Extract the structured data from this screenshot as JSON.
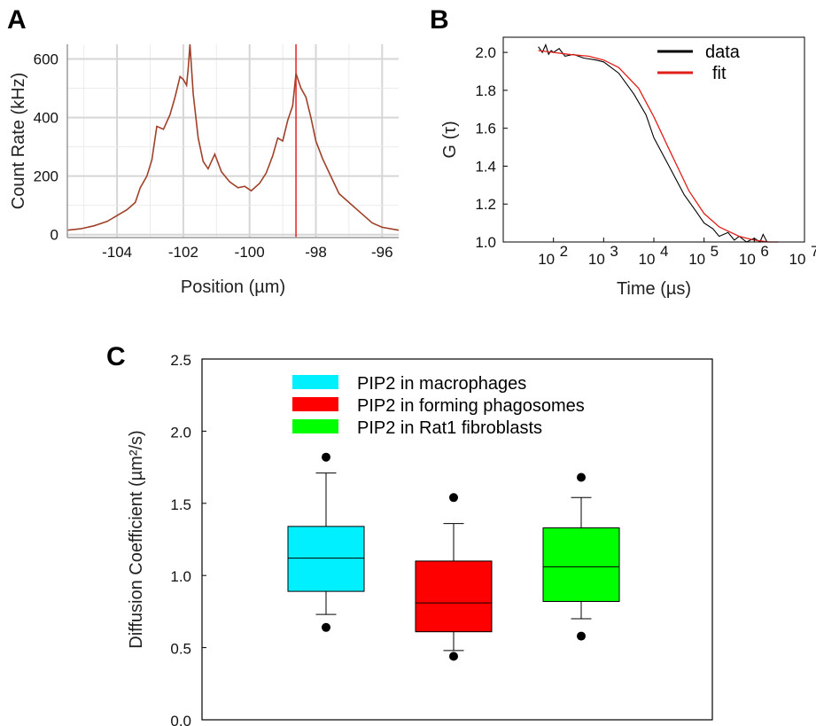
{
  "chart_data": [
    {
      "panel": "A",
      "type": "line",
      "xlabel": "Position (µm)",
      "ylabel": "Count Rate (kHz)",
      "xlim": [
        -105.5,
        -95.5
      ],
      "ylim": [
        -10,
        650
      ],
      "xticks": [
        "-104",
        "-102",
        "-100",
        "-98",
        "-96"
      ],
      "yticks": [
        "0",
        "200",
        "400",
        "600"
      ],
      "grid": true,
      "marker_x": -98.6,
      "series": [
        {
          "color": "#a0402a",
          "x": [
            -105.5,
            -105.1,
            -104.7,
            -104.3,
            -104.0,
            -103.7,
            -103.45,
            -103.3,
            -103.1,
            -102.95,
            -102.8,
            -102.6,
            -102.4,
            -102.25,
            -102.1,
            -102.0,
            -101.9,
            -101.85,
            -101.8,
            -101.7,
            -101.55,
            -101.4,
            -101.25,
            -101.05,
            -100.85,
            -100.6,
            -100.35,
            -100.15,
            -99.95,
            -99.7,
            -99.5,
            -99.3,
            -99.15,
            -99.0,
            -98.85,
            -98.7,
            -98.6,
            -98.45,
            -98.3,
            -98.15,
            -98.0,
            -97.8,
            -97.55,
            -97.3,
            -97.0,
            -96.7,
            -96.3,
            -96.0,
            -95.5
          ],
          "y": [
            15,
            20,
            30,
            45,
            65,
            85,
            110,
            160,
            200,
            255,
            370,
            360,
            410,
            470,
            540,
            530,
            510,
            570,
            660,
            480,
            330,
            250,
            225,
            275,
            215,
            180,
            160,
            165,
            150,
            175,
            210,
            270,
            330,
            320,
            390,
            440,
            550,
            500,
            470,
            400,
            320,
            260,
            200,
            140,
            110,
            80,
            40,
            25,
            15
          ]
        }
      ]
    },
    {
      "panel": "B",
      "type": "line",
      "xlabel": "Time (µs)",
      "ylabel": "G (τ)",
      "xscale": "log",
      "xlim": [
        10.0,
        10000000.0
      ],
      "ylim": [
        1.0,
        2.08
      ],
      "xticks": [
        "10",
        "10",
        "10",
        "10",
        "10",
        "10"
      ],
      "xtick_exponents": [
        "2",
        "3",
        "4",
        "5",
        "6",
        "7"
      ],
      "yticks": [
        "1.0",
        "1.2",
        "1.4",
        "1.6",
        "1.8",
        "2.0"
      ],
      "grid": false,
      "legend": {
        "position": "top-right"
      },
      "series": [
        {
          "name": "data",
          "color": "#000000",
          "x": [
            50,
            60,
            70,
            80,
            90,
            100,
            130,
            170,
            250,
            400,
            700,
            1000,
            2000,
            4000,
            7000,
            10000,
            20000,
            40000,
            70000,
            100000,
            150000,
            200000,
            300000,
            400000,
            500000,
            700000,
            1000000,
            1300000,
            1500000,
            1800000,
            2000000,
            2500000
          ],
          "y": [
            2.03,
            2.0,
            2.04,
            1.99,
            2.01,
            2.0,
            2.02,
            1.98,
            1.99,
            1.97,
            1.96,
            1.95,
            1.89,
            1.78,
            1.67,
            1.55,
            1.4,
            1.25,
            1.16,
            1.1,
            1.07,
            1.03,
            1.05,
            1.01,
            1.03,
            1.0,
            1.02,
            1.0,
            1.04,
            1.0,
            1.0,
            1.0
          ]
        },
        {
          "name": "fit",
          "color": "#e0201a",
          "x": [
            50,
            100,
            200,
            500,
            1000,
            2000,
            5000,
            10000,
            20000,
            50000,
            100000,
            200000,
            500000,
            1000000,
            2000000,
            3000000
          ],
          "y": [
            2.01,
            2.0,
            1.99,
            1.98,
            1.96,
            1.92,
            1.81,
            1.66,
            1.49,
            1.27,
            1.15,
            1.08,
            1.03,
            1.01,
            1.0,
            1.0
          ]
        }
      ]
    },
    {
      "panel": "C",
      "type": "box",
      "ylabel": "Diffusion Coefficient (µm²/s)",
      "ylim": [
        0.0,
        2.5
      ],
      "yticks": [
        "0.0",
        "0.5",
        "1.0",
        "1.5",
        "2.0",
        "2.5"
      ],
      "grid": false,
      "legend": {
        "position": "top-center"
      },
      "series": [
        {
          "name": "PIP2 in macrophages",
          "color": "#00f0ff",
          "q1": 0.89,
          "median": 1.12,
          "q3": 1.34,
          "whisker_low": 0.73,
          "whisker_high": 1.71,
          "outliers": [
            1.82,
            0.64
          ]
        },
        {
          "name": "PIP2 in forming phagosomes",
          "color": "#ff0000",
          "q1": 0.61,
          "median": 0.81,
          "q3": 1.1,
          "whisker_low": 0.48,
          "whisker_high": 1.36,
          "outliers": [
            1.54,
            0.44
          ]
        },
        {
          "name": "PIP2 in Rat1 fibroblasts",
          "color": "#00ff00",
          "q1": 0.82,
          "median": 1.06,
          "q3": 1.33,
          "whisker_low": 0.7,
          "whisker_high": 1.54,
          "outliers": [
            1.68,
            0.58
          ]
        }
      ]
    }
  ],
  "labels": {
    "a": "A",
    "b": "B",
    "c": "C"
  }
}
